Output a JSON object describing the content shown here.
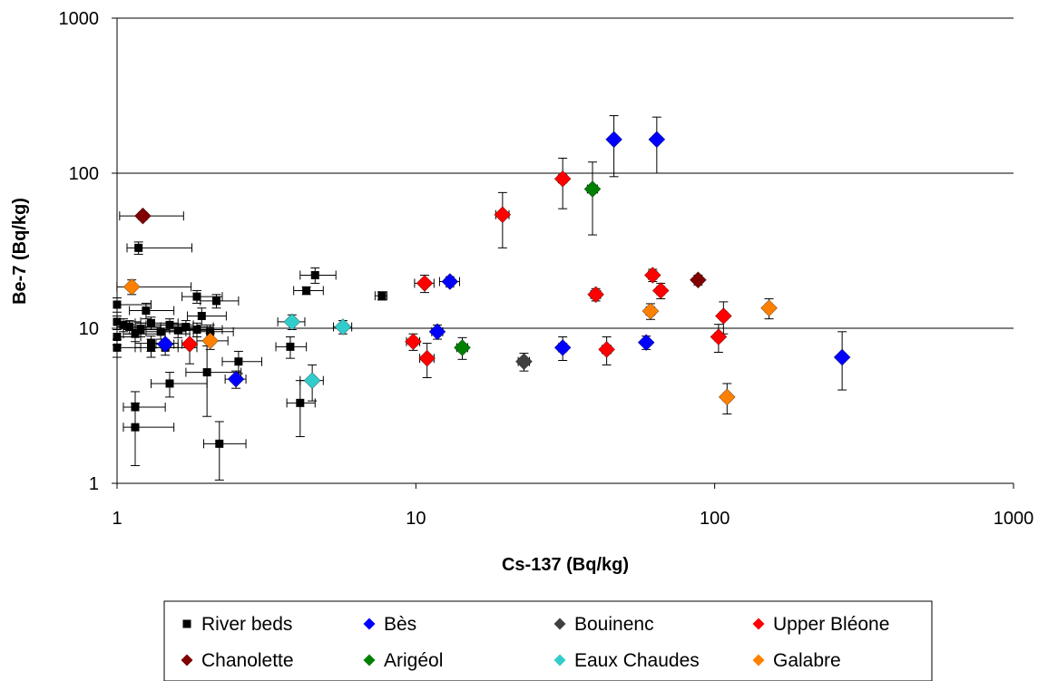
{
  "chart_data": {
    "type": "scatter",
    "xlabel": "Cs-137 (Bq/kg)",
    "ylabel": "Be-7 (Bq/kg)",
    "xscale": "log",
    "yscale": "log",
    "xlim": [
      1,
      1000
    ],
    "ylim": [
      1,
      1000
    ],
    "x_ticks": [
      "1",
      "10",
      "100",
      "1000"
    ],
    "y_ticks": [
      "1",
      "10",
      "100",
      "1000"
    ],
    "grid": "horizontal major gridlines",
    "legend_position": "bottom",
    "error_bars": true,
    "series": [
      {
        "name": "River beds",
        "marker": "square",
        "color": "#000000",
        "points": [
          {
            "x": 1.18,
            "y": 33,
            "xerr": [
              0.1,
              0.6
            ],
            "yerr": [
              3,
              3
            ]
          },
          {
            "x": 1.0,
            "y": 14.2,
            "xerr": [
              0.1,
              0.3
            ],
            "yerr": [
              1.5,
              1.5
            ]
          },
          {
            "x": 1.25,
            "y": 13,
            "xerr": [
              0.15,
              0.3
            ],
            "yerr": [
              1.5,
              1.5
            ]
          },
          {
            "x": 1.0,
            "y": 11,
            "xerr": [
              0.1,
              0.2
            ],
            "yerr": [
              1,
              1
            ]
          },
          {
            "x": 1.05,
            "y": 10.5,
            "xerr": [
              0.1,
              0.2
            ],
            "yerr": [
              1,
              1
            ]
          },
          {
            "x": 1.1,
            "y": 10.2,
            "xerr": [
              0.1,
              0.3
            ],
            "yerr": [
              1,
              1
            ]
          },
          {
            "x": 1.2,
            "y": 9.8,
            "xerr": [
              0.15,
              0.3
            ],
            "yerr": [
              1,
              1
            ]
          },
          {
            "x": 1.3,
            "y": 10.8,
            "xerr": [
              0.15,
              0.3
            ],
            "yerr": [
              1,
              1
            ]
          },
          {
            "x": 1.4,
            "y": 9.5,
            "xerr": [
              0.15,
              0.3
            ],
            "yerr": [
              1,
              1
            ]
          },
          {
            "x": 1.5,
            "y": 10.5,
            "xerr": [
              0.2,
              0.3
            ],
            "yerr": [
              1,
              1
            ]
          },
          {
            "x": 1.6,
            "y": 9.7,
            "xerr": [
              0.2,
              0.4
            ],
            "yerr": [
              1,
              1
            ]
          },
          {
            "x": 1.7,
            "y": 10.2,
            "xerr": [
              0.2,
              0.4
            ],
            "yerr": [
              1,
              1
            ]
          },
          {
            "x": 1.85,
            "y": 9.8,
            "xerr": [
              0.2,
              0.4
            ],
            "yerr": [
              1,
              1
            ]
          },
          {
            "x": 1.0,
            "y": 8.8,
            "xerr": [
              0.1,
              0.2
            ],
            "yerr": [
              1,
              1
            ]
          },
          {
            "x": 1.15,
            "y": 9.2,
            "xerr": [
              0.1,
              0.3
            ],
            "yerr": [
              1,
              1
            ]
          },
          {
            "x": 1.3,
            "y": 8.0,
            "xerr": [
              0.15,
              0.3
            ],
            "yerr": [
              0.9,
              0.9
            ]
          },
          {
            "x": 1.45,
            "y": 7.5,
            "xerr": [
              0.15,
              0.4
            ],
            "yerr": [
              0.8,
              0.8
            ]
          },
          {
            "x": 1.3,
            "y": 7.5,
            "xerr": [
              0.15,
              0.3
            ],
            "yerr": [
              1,
              1
            ]
          },
          {
            "x": 1.0,
            "y": 7.5,
            "xerr": [
              0.1,
              0.2
            ],
            "yerr": [
              1,
              1
            ]
          },
          {
            "x": 1.85,
            "y": 16,
            "xerr": [
              0.2,
              0.4
            ],
            "yerr": [
              1.5,
              1.5
            ]
          },
          {
            "x": 2.15,
            "y": 15,
            "xerr": [
              0.25,
              0.4
            ],
            "yerr": [
              1.5,
              1.5
            ]
          },
          {
            "x": 1.92,
            "y": 12,
            "xerr": [
              0.2,
              0.4
            ],
            "yerr": [
              1.5,
              1.5
            ]
          },
          {
            "x": 2.05,
            "y": 9.5,
            "xerr": [
              0.25,
              0.4
            ],
            "yerr": [
              1,
              1
            ]
          },
          {
            "x": 1.5,
            "y": 4.4,
            "xerr": [
              0.2,
              0.5
            ],
            "yerr": [
              0.8,
              0.8
            ]
          },
          {
            "x": 2.0,
            "y": 5.2,
            "xerr": [
              0.3,
              0.6
            ],
            "yerr": [
              2.5,
              2.5
            ]
          },
          {
            "x": 2.55,
            "y": 6.1,
            "xerr": [
              0.3,
              0.5
            ],
            "yerr": [
              1,
              1
            ]
          },
          {
            "x": 1.15,
            "y": 3.1,
            "xerr": [
              0.1,
              0.3
            ],
            "yerr": [
              0.8,
              0.8
            ]
          },
          {
            "x": 1.15,
            "y": 2.3,
            "xerr": [
              0.1,
              0.4
            ],
            "yerr": [
              1.0,
              1.0
            ]
          },
          {
            "x": 2.2,
            "y": 1.8,
            "xerr": [
              0.25,
              0.5
            ],
            "yerr": [
              0.75,
              0.7
            ]
          },
          {
            "x": 4.6,
            "y": 22,
            "xerr": [
              0.5,
              0.8
            ],
            "yerr": [
              2.5,
              2.5
            ]
          },
          {
            "x": 4.3,
            "y": 17.5,
            "xerr": [
              0.4,
              0.6
            ],
            "yerr": [
              1,
              1
            ]
          },
          {
            "x": 7.7,
            "y": 16.2,
            "xerr": [
              0.4,
              0.3
            ],
            "yerr": [
              1,
              1
            ]
          },
          {
            "x": 3.8,
            "y": 7.6,
            "xerr": [
              0.4,
              0.5
            ],
            "yerr": [
              1.2,
              1.2
            ]
          },
          {
            "x": 4.1,
            "y": 3.3,
            "xerr": [
              0.4,
              0.5
            ],
            "yerr": [
              1.3,
              1.3
            ]
          }
        ]
      },
      {
        "name": "Bès",
        "marker": "diamond",
        "color": "#0000ff",
        "points": [
          {
            "x": 1.45,
            "y": 7.9,
            "xerr": [
              0.1,
              0.1
            ],
            "yerr": [
              0.5,
              0.5
            ]
          },
          {
            "x": 2.5,
            "y": 4.7,
            "xerr": [
              0.2,
              0.2
            ],
            "yerr": [
              0.6,
              0.6
            ]
          },
          {
            "x": 11.8,
            "y": 9.5,
            "xerr": [
              0.5,
              0.5
            ],
            "yerr": [
              1,
              1
            ]
          },
          {
            "x": 13,
            "y": 20,
            "xerr": [
              1,
              1
            ],
            "yerr": [
              1.5,
              1.5
            ]
          },
          {
            "x": 31,
            "y": 7.5,
            "xerr": [
              1,
              1
            ],
            "yerr": [
              1.3,
              1.3
            ]
          },
          {
            "x": 46,
            "y": 165,
            "xerr": [
              1,
              1
            ],
            "yerr": [
              70,
              70
            ]
          },
          {
            "x": 59,
            "y": 8.1,
            "xerr": [
              1.5,
              1.5
            ],
            "yerr": [
              0.8,
              0.8
            ]
          },
          {
            "x": 64,
            "y": 165,
            "xerr": [
              1.5,
              1.5
            ],
            "yerr": [
              65,
              65
            ]
          },
          {
            "x": 267,
            "y": 6.5,
            "xerr": [
              5,
              5
            ],
            "yerr": [
              2.5,
              3
            ]
          }
        ]
      },
      {
        "name": "Bouinenc",
        "marker": "diamond",
        "color": "#404040",
        "points": [
          {
            "x": 23,
            "y": 6.1,
            "xerr": [
              1,
              1
            ],
            "yerr": [
              0.8,
              0.8
            ]
          }
        ]
      },
      {
        "name": "Upper Bléone",
        "marker": "diamond",
        "color": "#ff0000",
        "points": [
          {
            "x": 1.75,
            "y": 7.9,
            "xerr": [
              0.1,
              0.1
            ],
            "yerr": [
              2,
              2
            ]
          },
          {
            "x": 9.8,
            "y": 8.2,
            "xerr": [
              0.5,
              0.5
            ],
            "yerr": [
              1,
              1
            ]
          },
          {
            "x": 10.7,
            "y": 19.5,
            "xerr": [
              0.8,
              0.8
            ],
            "yerr": [
              2.5,
              2.5
            ]
          },
          {
            "x": 10.9,
            "y": 6.4,
            "xerr": [
              0.6,
              0.6
            ],
            "yerr": [
              1.6,
              1.6
            ]
          },
          {
            "x": 19.5,
            "y": 54,
            "xerr": [
              1,
              1
            ],
            "yerr": [
              21,
              21
            ]
          },
          {
            "x": 31,
            "y": 92,
            "xerr": [
              1,
              1
            ],
            "yerr": [
              33,
              33
            ]
          },
          {
            "x": 40,
            "y": 16.5,
            "xerr": [
              1.5,
              1.5
            ],
            "yerr": [
              1.5,
              1.5
            ]
          },
          {
            "x": 43.5,
            "y": 7.3,
            "xerr": [
              1.5,
              1.5
            ],
            "yerr": [
              1.5,
              1.5
            ]
          },
          {
            "x": 62,
            "y": 22,
            "xerr": [
              2,
              2
            ],
            "yerr": [
              2,
              2
            ]
          },
          {
            "x": 66,
            "y": 17.5,
            "xerr": [
              2,
              2
            ],
            "yerr": [
              2,
              2
            ]
          },
          {
            "x": 103,
            "y": 8.8,
            "xerr": [
              3,
              3
            ],
            "yerr": [
              1.8,
              1.8
            ]
          },
          {
            "x": 107,
            "y": 12,
            "xerr": [
              3,
              3
            ],
            "yerr": [
              2.8,
              2.8
            ]
          }
        ]
      },
      {
        "name": "Chanolette",
        "marker": "diamond",
        "color": "#800000",
        "points": [
          {
            "x": 1.22,
            "y": 53,
            "xerr": [
              0.2,
              0.45
            ],
            "yerr": [
              3,
              3
            ]
          },
          {
            "x": 88,
            "y": 20.5,
            "xerr": [
              2,
              2
            ],
            "yerr": [
              1.5,
              1.5
            ]
          }
        ]
      },
      {
        "name": "Arigéol",
        "marker": "diamond",
        "color": "#008000",
        "points": [
          {
            "x": 14.3,
            "y": 7.5,
            "xerr": [
              0.6,
              0.6
            ],
            "yerr": [
              1.2,
              1.2
            ]
          },
          {
            "x": 39,
            "y": 79,
            "xerr": [
              1.5,
              1.5
            ],
            "yerr": [
              39,
              39
            ]
          }
        ]
      },
      {
        "name": "Eaux Chaudes",
        "marker": "diamond",
        "color": "#33cccc",
        "points": [
          {
            "x": 3.85,
            "y": 11,
            "xerr": [
              0.4,
              0.4
            ],
            "yerr": [
              1.2,
              1.2
            ]
          },
          {
            "x": 4.5,
            "y": 4.6,
            "xerr": [
              0.4,
              0.4
            ],
            "yerr": [
              1.2,
              1.2
            ]
          },
          {
            "x": 5.7,
            "y": 10.2,
            "xerr": [
              0.4,
              0.4
            ],
            "yerr": [
              1,
              1
            ]
          }
        ]
      },
      {
        "name": "Galabre",
        "marker": "diamond",
        "color": "#ff8000",
        "points": [
          {
            "x": 1.12,
            "y": 18.5,
            "xerr": [
              0.15,
              0.65
            ],
            "yerr": [
              2,
              2
            ]
          },
          {
            "x": 2.05,
            "y": 8.3,
            "xerr": [
              0.2,
              0.3
            ],
            "yerr": [
              1,
              1
            ]
          },
          {
            "x": 61,
            "y": 12.9,
            "xerr": [
              2,
              2
            ],
            "yerr": [
              1.5,
              1.5
            ]
          },
          {
            "x": 110,
            "y": 3.6,
            "xerr": [
              3,
              3
            ],
            "yerr": [
              0.8,
              0.8
            ]
          },
          {
            "x": 152,
            "y": 13.5,
            "xerr": [
              4,
              4
            ],
            "yerr": [
              2,
              2
            ]
          }
        ]
      }
    ]
  },
  "legend": {
    "rows": [
      [
        "River beds",
        "Bès",
        "Bouinenc",
        "Upper Bléone"
      ],
      [
        "Chanolette",
        "Arigéol",
        "Eaux Chaudes",
        "Galabre"
      ]
    ]
  }
}
